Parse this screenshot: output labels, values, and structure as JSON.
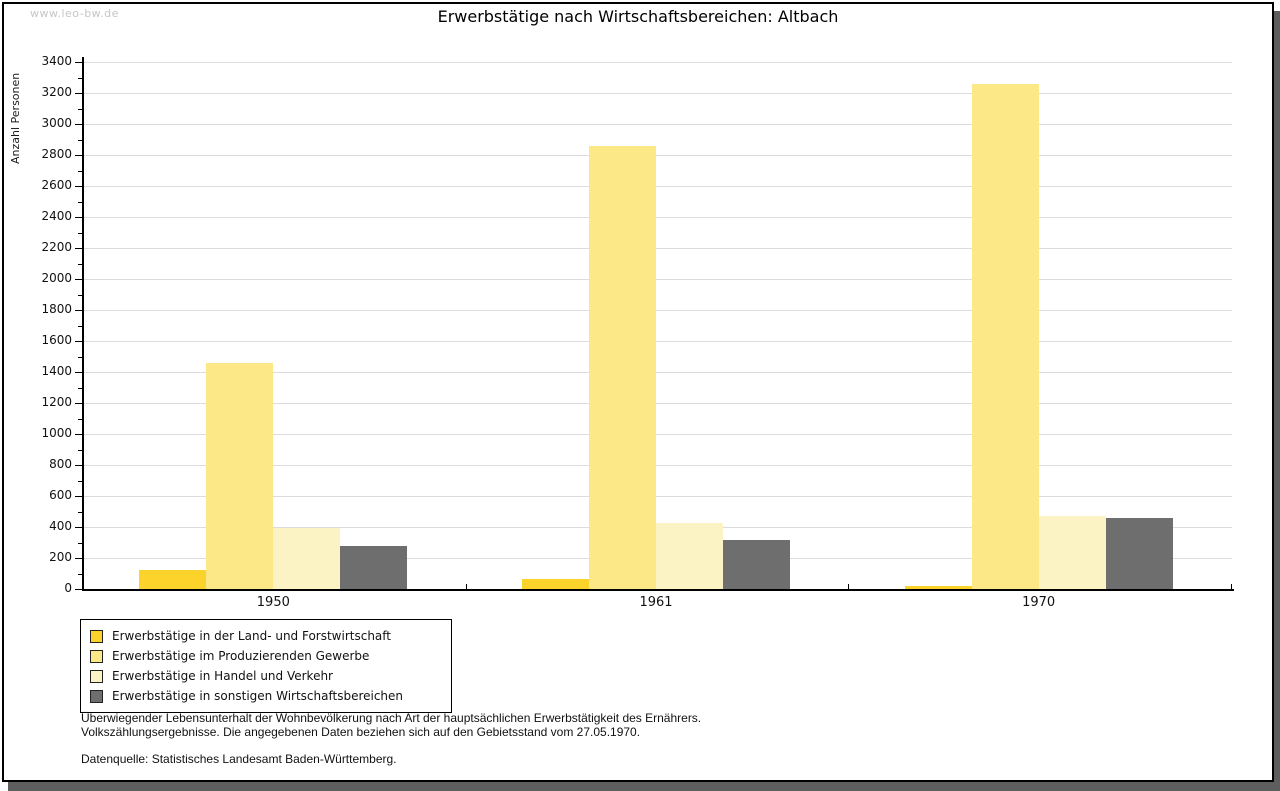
{
  "header": {
    "watermark": "www.leo-bw.de"
  },
  "chart_data": {
    "type": "bar",
    "title": "Erwerbstätige nach Wirtschaftsbereichen: Altbach",
    "ylabel": "Anzahl Personen",
    "xlabel": "",
    "categories": [
      "1950",
      "1961",
      "1970"
    ],
    "series": [
      {
        "name": "Erwerbstätige in der Land- und Forstwirtschaft",
        "color": "#fbd32b",
        "values": [
          125,
          65,
          20
        ]
      },
      {
        "name": "Erwerbstätige im Produzierenden Gewerbe",
        "color": "#fce886",
        "values": [
          1455,
          2860,
          3260
        ]
      },
      {
        "name": "Erwerbstätige in Handel und Verkehr",
        "color": "#fcf3c5",
        "values": [
          395,
          425,
          470
        ]
      },
      {
        "name": "Erwerbstätige in sonstigen Wirtschaftsbereichen",
        "color": "#6e6e6e",
        "values": [
          275,
          315,
          455
        ]
      }
    ],
    "ylim": [
      0,
      3400
    ],
    "y_major_step": 200,
    "y_minor_step": 100,
    "grid": true,
    "legend_position": "bottom-left"
  },
  "footer": {
    "line1": "Überwiegender Lebensunterhalt der Wohnbevölkerung nach Art der hauptsächlichen Erwerbstätigkeit des Ernährers.",
    "line2": "Volkszählungsergebnisse. Die angegebenen Daten beziehen sich auf den Gebietsstand vom 27.05.1970.",
    "source": "Datenquelle: Statistisches Landesamt Baden-Württemberg."
  },
  "colors": {
    "grid": "#dcdcdc",
    "axis": "#000000",
    "frame_shadow": "#5e5e5e",
    "watermark": "#c6c6c6"
  }
}
